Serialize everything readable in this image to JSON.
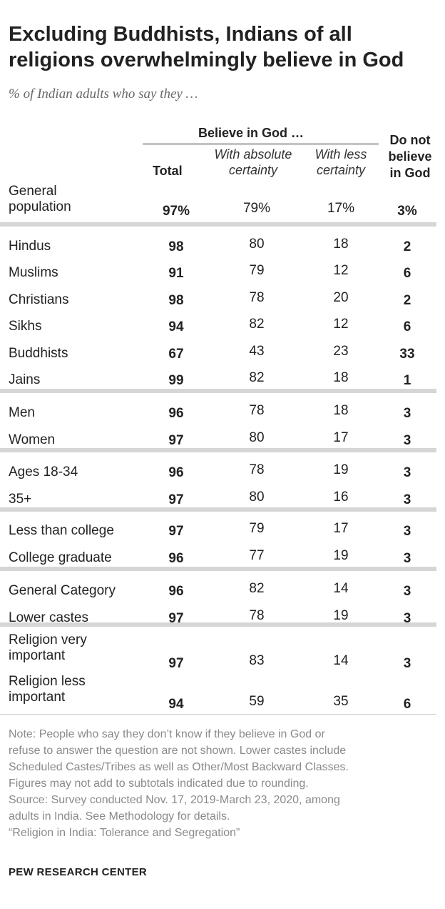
{
  "chart_data": {
    "type": "table",
    "title_lines": [
      "Excluding Buddhists, Indians of all",
      "religions overwhelmingly believe in God"
    ],
    "subtitle": "% of Indian adults who say they …",
    "group_header": "Believe in God …",
    "columns": {
      "total": "Total",
      "absolute": [
        "With absolute",
        "certainty"
      ],
      "less": [
        "With less",
        "certainty"
      ],
      "not": [
        "Do not",
        "believe",
        "in God"
      ]
    },
    "rows": [
      {
        "label": [
          "General",
          "population"
        ],
        "total": "97%",
        "absolute": "79%",
        "less": "17%",
        "not": "3%"
      },
      {
        "label": [
          "Hindus"
        ],
        "total": "98",
        "absolute": "80",
        "less": "18",
        "not": "2"
      },
      {
        "label": [
          "Muslims"
        ],
        "total": "91",
        "absolute": "79",
        "less": "12",
        "not": "6"
      },
      {
        "label": [
          "Christians"
        ],
        "total": "98",
        "absolute": "78",
        "less": "20",
        "not": "2"
      },
      {
        "label": [
          "Sikhs"
        ],
        "total": "94",
        "absolute": "82",
        "less": "12",
        "not": "6"
      },
      {
        "label": [
          "Buddhists"
        ],
        "total": "67",
        "absolute": "43",
        "less": "23",
        "not": "33"
      },
      {
        "label": [
          "Jains"
        ],
        "total": "99",
        "absolute": "82",
        "less": "18",
        "not": "1"
      },
      {
        "label": [
          "Men"
        ],
        "total": "96",
        "absolute": "78",
        "less": "18",
        "not": "3"
      },
      {
        "label": [
          "Women"
        ],
        "total": "97",
        "absolute": "80",
        "less": "17",
        "not": "3"
      },
      {
        "label": [
          "Ages 18-34"
        ],
        "total": "96",
        "absolute": "78",
        "less": "19",
        "not": "3"
      },
      {
        "label": [
          "35+"
        ],
        "total": "97",
        "absolute": "80",
        "less": "16",
        "not": "3"
      },
      {
        "label": [
          "Less than college"
        ],
        "total": "97",
        "absolute": "79",
        "less": "17",
        "not": "3"
      },
      {
        "label": [
          "College graduate"
        ],
        "total": "96",
        "absolute": "77",
        "less": "19",
        "not": "3"
      },
      {
        "label": [
          "General Category"
        ],
        "total": "96",
        "absolute": "82",
        "less": "14",
        "not": "3"
      },
      {
        "label": [
          "Lower castes"
        ],
        "total": "97",
        "absolute": "78",
        "less": "19",
        "not": "3"
      },
      {
        "label": [
          "Religion very",
          "important"
        ],
        "total": "97",
        "absolute": "83",
        "less": "14",
        "not": "3"
      },
      {
        "label": [
          "Religion less",
          "important"
        ],
        "total": "94",
        "absolute": "59",
        "less": "35",
        "not": "6"
      }
    ]
  },
  "note_lines": [
    "Note: People who say they don’t know if they believe in God or",
    "refuse to answer the question are not shown. Lower castes include",
    "Scheduled Castes/Tribes as well as Other/Most Backward Classes.",
    "Figures may not add to subtotals indicated due to rounding.",
    "Source: Survey conducted Nov. 17, 2019-March 23, 2020, among",
    "adults in India. See Methodology for details.",
    "“Religion in India: Tolerance and Segregation”"
  ],
  "footer": "PEW RESEARCH CENTER"
}
